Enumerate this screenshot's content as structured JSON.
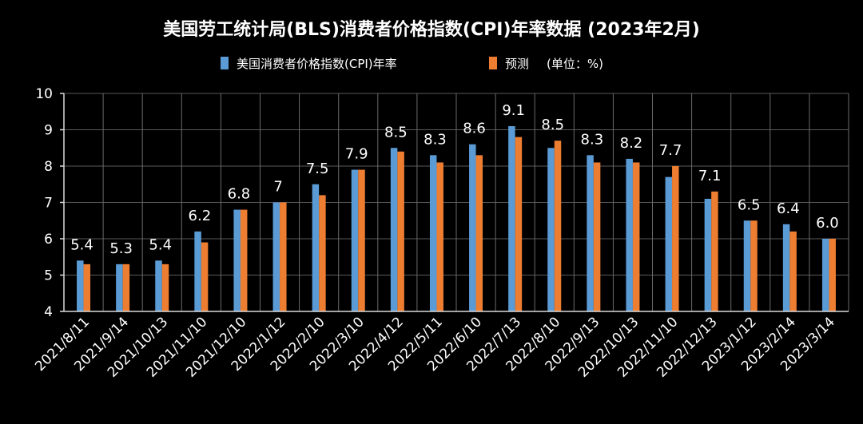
{
  "chart_data": {
    "type": "bar",
    "title": "美国劳工统计局(BLS)消费者价格指数(CPI)年率数据 (2023年2月)",
    "categories": [
      "2021/8/11",
      "2021/9/14",
      "2021/10/13",
      "2021/11/10",
      "2021/12/10",
      "2022/1/12",
      "2022/2/10",
      "2022/3/10",
      "2022/4/12",
      "2022/5/11",
      "2022/6/10",
      "2022/7/13",
      "2022/8/10",
      "2022/9/13",
      "2022/10/13",
      "2022/11/10",
      "2022/12/13",
      "2023/1/12",
      "2023/2/14",
      "2023/3/14"
    ],
    "series": [
      {
        "name": "美国消费者价格指数(CPI)年率",
        "color": "#5b9bd5",
        "values": [
          5.4,
          5.3,
          5.4,
          6.2,
          6.8,
          7.0,
          7.5,
          7.9,
          8.5,
          8.3,
          8.6,
          9.1,
          8.5,
          8.3,
          8.2,
          7.7,
          7.1,
          6.5,
          6.4,
          6.0
        ],
        "data_labels": [
          "5.4",
          "5.3",
          "5.4",
          "6.2",
          "6.8",
          "7",
          "7.5",
          "7.9",
          "8.5",
          "8.3",
          "8.6",
          "9.1",
          "8.5",
          "8.3",
          "8.2",
          "7.7",
          "7.1",
          "6.5",
          "6.4",
          "6.0"
        ]
      },
      {
        "name": "预测",
        "color": "#ed7d31",
        "values": [
          5.3,
          5.3,
          5.3,
          5.9,
          6.8,
          7.0,
          7.2,
          7.9,
          8.4,
          8.1,
          8.3,
          8.8,
          8.7,
          8.1,
          8.1,
          8.0,
          7.3,
          6.5,
          6.2,
          6.0
        ]
      }
    ],
    "legend_unit": "(单位：%)",
    "yticks": [
      "4",
      "5",
      "6",
      "7",
      "8",
      "9",
      "10"
    ],
    "ylim": [
      4,
      10
    ],
    "xlabel": "",
    "ylabel": "",
    "grid": true,
    "legend_position": "top"
  }
}
